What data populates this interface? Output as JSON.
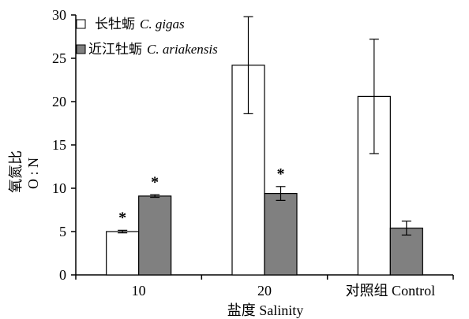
{
  "chart_data": {
    "type": "bar",
    "categories": [
      "10",
      "20",
      "对照组 Control"
    ],
    "series": [
      {
        "name": "长牡蛎 C. gigas",
        "legend_cn": "长牡蛎",
        "legend_latin": "C. gigas",
        "values": [
          5.0,
          24.2,
          20.6
        ],
        "error": [
          0.15,
          5.6,
          6.6
        ],
        "significant": [
          true,
          false,
          false
        ],
        "color": "#ffffff"
      },
      {
        "name": "近江牡蛎 C. ariakensis",
        "legend_cn": "近江牡蛎",
        "legend_latin": "C. ariakensis",
        "values": [
          9.1,
          9.4,
          5.4
        ],
        "error": [
          0.15,
          0.8,
          0.8
        ],
        "significant": [
          true,
          true,
          false
        ],
        "color": "#808080"
      }
    ],
    "xlabel": "盐度 Salinity",
    "ylabel_line1": "氧氮比",
    "ylabel_line2": "O : N",
    "ylim": [
      0,
      30
    ],
    "yticks": [
      0,
      5,
      10,
      15,
      20,
      25,
      30
    ],
    "significance_marker": "*",
    "grid": false,
    "legend_position": "top-left"
  }
}
